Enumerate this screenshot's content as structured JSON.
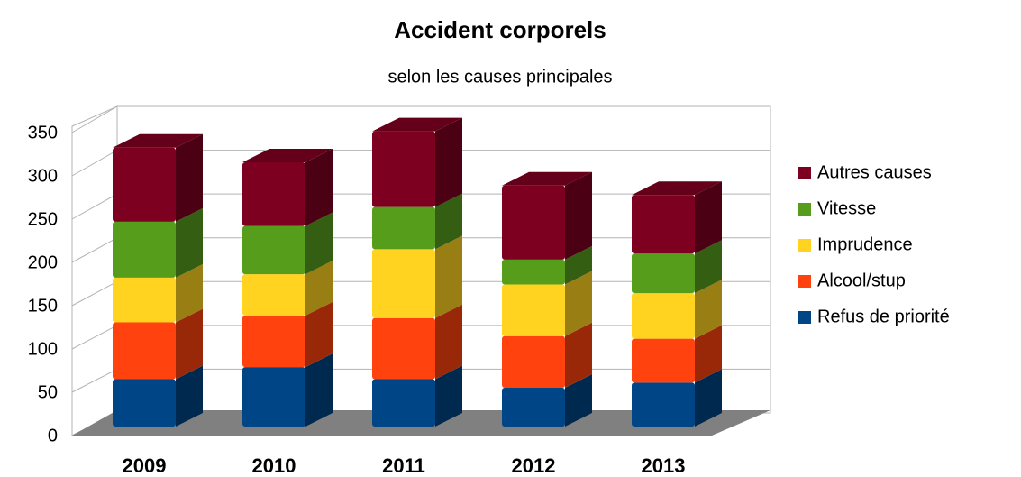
{
  "chart_data": {
    "type": "bar3d_stacked",
    "title": "Accident corporels",
    "subtitle": "selon les causes principales",
    "categories": [
      "2009",
      "2010",
      "2011",
      "2012",
      "2013"
    ],
    "series": [
      {
        "name": "Refus de priorité",
        "color": "#004586",
        "values": [
          55,
          69,
          55,
          45,
          51
        ]
      },
      {
        "name": "Alcool/stup",
        "color": "#ff420e",
        "values": [
          66,
          60,
          71,
          60,
          51
        ]
      },
      {
        "name": "Imprudence",
        "color": "#ffd320",
        "values": [
          52,
          48,
          80,
          60,
          53
        ]
      },
      {
        "name": "Vitesse",
        "color": "#579d1c",
        "values": [
          65,
          56,
          49,
          29,
          46
        ]
      },
      {
        "name": "Autres causes",
        "color": "#7e0021",
        "values": [
          86,
          74,
          88,
          86,
          68
        ]
      }
    ],
    "ylim": [
      0,
      350
    ],
    "yticks": [
      0,
      50,
      100,
      150,
      200,
      250,
      300,
      350
    ],
    "grid": true,
    "legend": "right"
  }
}
